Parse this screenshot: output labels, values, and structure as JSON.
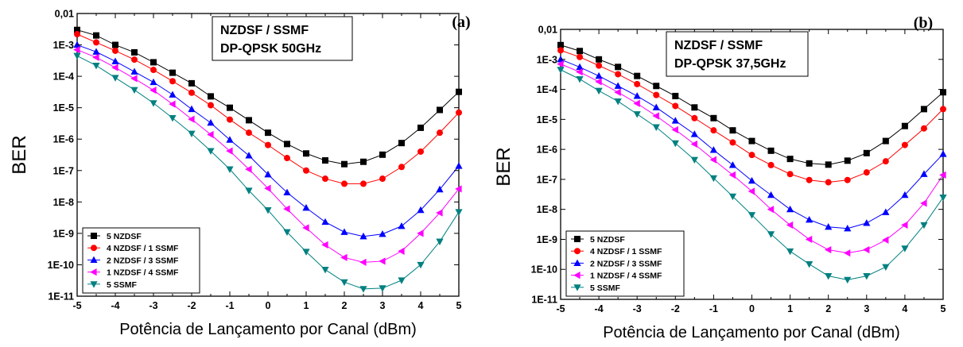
{
  "chart_data": [
    {
      "type": "line",
      "panel_label": "(a)",
      "annotation": [
        "NZDSF / SSMF",
        "DP-QPSK 50GHz"
      ],
      "xlabel": "Potência de Lançamento por Canal (dBm)",
      "ylabel": "BER",
      "xlim": [
        -5,
        5
      ],
      "ylim_log10": [
        -11,
        -2
      ],
      "y_scale": "log",
      "x_ticks": [
        "-5",
        "-4",
        "-3",
        "-2",
        "-1",
        "0",
        "1",
        "2",
        "3",
        "4",
        "5"
      ],
      "y_ticks": [
        "0,01",
        "1E-3",
        "1E-4",
        "1E-5",
        "1E-6",
        "1E-7",
        "1E-8",
        "1E-9",
        "1E-10",
        "1E-11"
      ],
      "legend_position": "bottom-left",
      "x": [
        -5,
        -4.5,
        -4,
        -3.5,
        -3,
        -2.5,
        -2,
        -1.5,
        -1,
        -0.5,
        0,
        0.5,
        1,
        1.5,
        2,
        2.5,
        3,
        3.5,
        4,
        4.5,
        5
      ],
      "series": [
        {
          "name": "5 NZDSF",
          "color": "#000000",
          "marker": "square",
          "values": [
            0.003,
            0.002,
            0.001,
            0.00058,
            0.00028,
            0.00013,
            6e-05,
            2.3e-05,
            1e-05,
            4e-06,
            1.6e-06,
            7e-07,
            3.5e-07,
            2.1e-07,
            1.6e-07,
            1.9e-07,
            3.2e-07,
            7.5e-07,
            2.3e-06,
            8.5e-06,
            3.2e-05
          ]
        },
        {
          "name": "4 NZDSF / 1 SSMF",
          "color": "#ff0000",
          "marker": "circle",
          "values": [
            0.0022,
            0.0012,
            0.00065,
            0.00034,
            0.00016,
            7e-05,
            3e-05,
            1.2e-05,
            4.2e-06,
            1.6e-06,
            6.5e-07,
            2.5e-07,
            1e-07,
            5.5e-08,
            3.8e-08,
            3.8e-08,
            5.5e-08,
            1.3e-07,
            4e-07,
            1.6e-06,
            7e-06
          ]
        },
        {
          "name": "2 NZDSF / 3 SSMF",
          "color": "#0000ff",
          "marker": "triangle-up",
          "values": [
            0.001,
            0.0006,
            0.0003,
            0.00014,
            6.5e-05,
            2.6e-05,
            9e-06,
            3.3e-06,
            9.5e-07,
            3e-07,
            7.5e-08,
            2e-08,
            6.5e-09,
            2.3e-09,
            1.1e-09,
            8e-10,
            9.5e-10,
            1.7e-09,
            5.5e-09,
            2.5e-08,
            1.4e-07
          ]
        },
        {
          "name": "1 NZDSF / 4 SSMF",
          "color": "#ff00ff",
          "marker": "triangle-left",
          "values": [
            0.0007,
            0.0004,
            0.00019,
            8.5e-05,
            3.6e-05,
            1.3e-05,
            4.3e-06,
            1.4e-06,
            4.2e-07,
            1.1e-07,
            2.7e-08,
            6e-09,
            1.5e-09,
            4.3e-10,
            1.7e-10,
            1.2e-10,
            1.3e-10,
            2.7e-10,
            1e-09,
            4.5e-09,
            2.6e-08
          ]
        },
        {
          "name": "5 SSMF",
          "color": "#008080",
          "marker": "triangle-down",
          "values": [
            0.00045,
            0.00022,
            9e-05,
            3.7e-05,
            1.4e-05,
            4.7e-06,
            1.5e-06,
            4.2e-07,
            1.1e-07,
            2.3e-08,
            5.5e-09,
            1.1e-09,
            2.6e-10,
            7e-11,
            2.8e-11,
            1.7e-11,
            1.8e-11,
            3.2e-11,
            1e-10,
            5.5e-10,
            4.8e-09
          ]
        }
      ]
    },
    {
      "type": "line",
      "panel_label": "(b)",
      "annotation": [
        "NZDSF / SSMF",
        "DP-QPSK 37,5GHz"
      ],
      "xlabel": "Potência de Lançamento por Canal (dBm)",
      "ylabel": "BER",
      "xlim": [
        -5,
        5
      ],
      "ylim_log10": [
        -11,
        -2
      ],
      "y_scale": "log",
      "x_ticks": [
        "-5",
        "-4",
        "-3",
        "-2",
        "-1",
        "0",
        "1",
        "2",
        "3",
        "4",
        "5"
      ],
      "y_ticks": [
        "0,01",
        "1E-3",
        "1E-4",
        "1E-5",
        "1E-6",
        "1E-7",
        "1E-8",
        "1E-9",
        "1E-10",
        "1E-11"
      ],
      "legend_position": "bottom-left",
      "x": [
        -5,
        -4.5,
        -4,
        -3.5,
        -3,
        -2.5,
        -2,
        -1.5,
        -1,
        -0.5,
        0,
        0.5,
        1,
        1.5,
        2,
        2.5,
        3,
        3.5,
        4,
        4.5,
        5
      ],
      "series": [
        {
          "name": "5 NZDSF",
          "color": "#000000",
          "marker": "square",
          "values": [
            0.003,
            0.0019,
            0.001,
            0.00056,
            0.00028,
            0.00013,
            6e-05,
            2.5e-05,
            1.1e-05,
            4.3e-06,
            1.9e-06,
            9e-07,
            4.8e-07,
            3.4e-07,
            3.1e-07,
            4.2e-07,
            7.5e-07,
            1.9e-06,
            6e-06,
            2.2e-05,
            8e-05
          ]
        },
        {
          "name": "4 NZDSF / 1 SSMF",
          "color": "#ff0000",
          "marker": "circle",
          "values": [
            0.002,
            0.0012,
            0.00062,
            0.00032,
            0.00015,
            6.5e-05,
            2.8e-05,
            1.1e-05,
            4.3e-06,
            1.7e-06,
            6.5e-07,
            3e-07,
            1.5e-07,
            9.5e-08,
            8e-08,
            9.5e-08,
            1.7e-07,
            4e-07,
            1.4e-06,
            5e-06,
            2.2e-05
          ]
        },
        {
          "name": "2 NZDSF / 3 SSMF",
          "color": "#0000ff",
          "marker": "triangle-up",
          "values": [
            0.001,
            0.00055,
            0.00028,
            0.00013,
            6e-05,
            2.5e-05,
            9e-06,
            3.2e-06,
            9.5e-07,
            3e-07,
            9e-08,
            3e-08,
            1e-08,
            4.5e-09,
            2.6e-09,
            2.3e-09,
            3.5e-09,
            8e-09,
            3e-08,
            1.5e-07,
            7e-07
          ]
        },
        {
          "name": "1 NZDSF / 4 SSMF",
          "color": "#ff00ff",
          "marker": "triangle-left",
          "values": [
            0.0007,
            0.00038,
            0.00018,
            8e-05,
            3.4e-05,
            1.3e-05,
            4.5e-06,
            1.5e-06,
            4.5e-07,
            1.4e-07,
            4e-08,
            1e-08,
            3e-09,
            1e-09,
            4.5e-10,
            3.5e-10,
            4.5e-10,
            9.5e-10,
            3e-09,
            1.6e-08,
            1.4e-07
          ]
        },
        {
          "name": "5 SSMF",
          "color": "#008080",
          "marker": "triangle-down",
          "values": [
            0.00045,
            0.00022,
            9e-05,
            4e-05,
            1.5e-05,
            5.5e-06,
            1.6e-06,
            4.5e-07,
            1.1e-07,
            2.7e-08,
            6.5e-09,
            1.5e-09,
            4e-10,
            1.5e-10,
            6e-11,
            4.5e-11,
            6e-11,
            1.2e-10,
            5e-10,
            3e-09,
            2.5e-08
          ]
        }
      ]
    }
  ]
}
